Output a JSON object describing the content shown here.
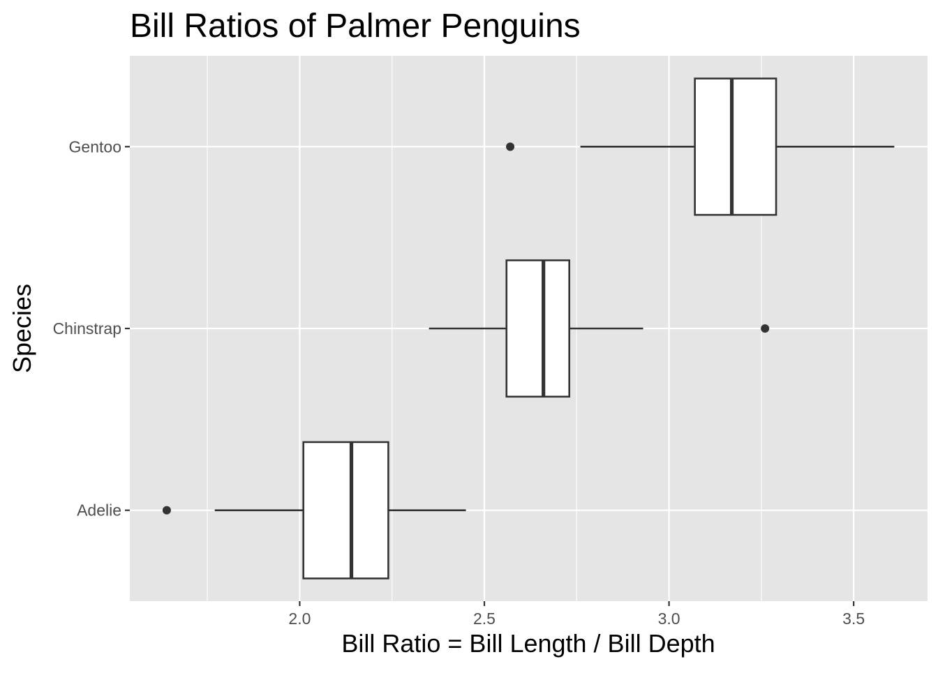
{
  "chart_data": {
    "type": "boxplot",
    "orientation": "horizontal",
    "title": "Bill Ratios of Palmer Penguins",
    "xlabel": "Bill Ratio = Bill Length / Bill Depth",
    "ylabel": "Species",
    "xlim": [
      1.54,
      3.7
    ],
    "x_ticks": [
      2.0,
      2.5,
      3.0,
      3.5
    ],
    "x_tick_labels": [
      "2.0",
      "2.5",
      "3.0",
      "3.5"
    ],
    "x_minor_ticks": [
      1.75,
      2.25,
      2.75,
      3.25
    ],
    "categories": [
      "Adelie",
      "Chinstrap",
      "Gentoo"
    ],
    "grid": true,
    "legend": "none",
    "colors": {
      "panel_background": "#e5e5e5",
      "grid": "#ffffff",
      "box_fill": "#ffffff",
      "box_line": "#333333"
    },
    "boxes": [
      {
        "category": "Adelie",
        "whisker_low": 1.77,
        "q1": 2.01,
        "median": 2.14,
        "q3": 2.24,
        "whisker_high": 2.45,
        "outliers": [
          1.64
        ]
      },
      {
        "category": "Chinstrap",
        "whisker_low": 2.35,
        "q1": 2.56,
        "median": 2.66,
        "q3": 2.73,
        "whisker_high": 2.93,
        "outliers": [
          3.26
        ]
      },
      {
        "category": "Gentoo",
        "whisker_low": 2.76,
        "q1": 3.07,
        "median": 3.17,
        "q3": 3.29,
        "whisker_high": 3.61,
        "outliers": [
          2.57
        ]
      }
    ]
  }
}
